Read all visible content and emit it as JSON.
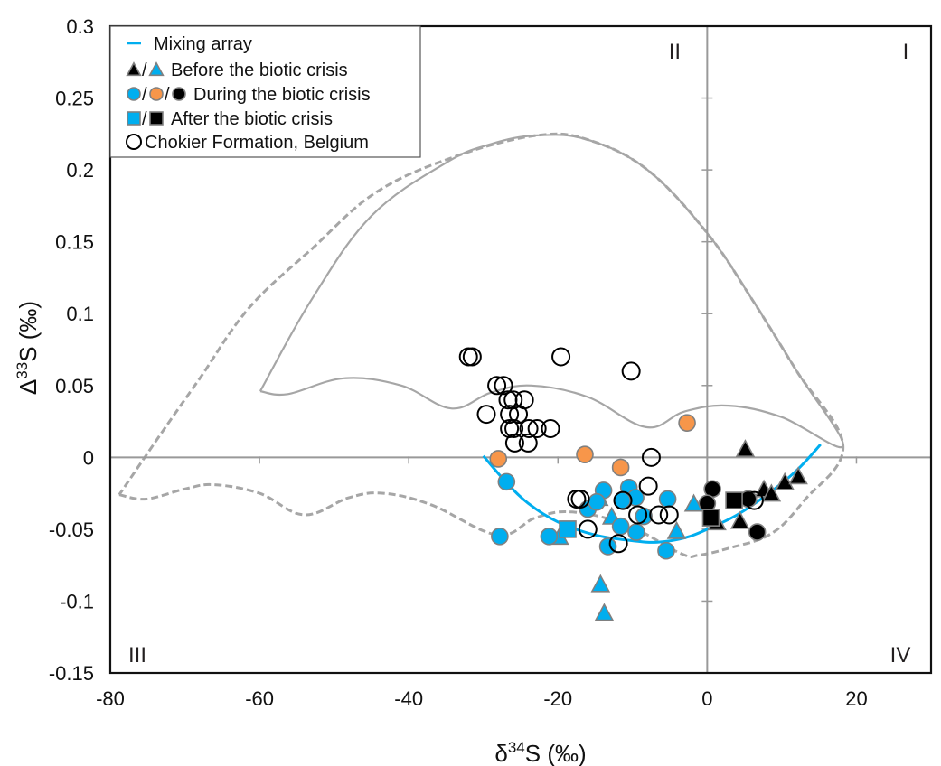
{
  "chart_data": {
    "type": "scatter",
    "title": "",
    "xlabel": "δ34S (‰)",
    "xlabel_parts": {
      "prefix": "δ",
      "sup": "34",
      "suffix": "S (‰)"
    },
    "ylabel": "Δ33S (‰)",
    "ylabel_parts": {
      "prefix": "Δ",
      "sup": "33",
      "suffix": "S (‰)"
    },
    "xlim": [
      -80,
      30
    ],
    "ylim": [
      -0.15,
      0.3
    ],
    "x_ticks": [
      -80,
      -60,
      -40,
      -20,
      0,
      20
    ],
    "x_tick_labels": [
      "-80",
      "-60",
      "-40",
      "-20",
      "0",
      "20"
    ],
    "y_ticks": [
      -0.15,
      -0.1,
      -0.05,
      0,
      0.05,
      0.1,
      0.15,
      0.2,
      0.25,
      0.3
    ],
    "y_tick_labels": [
      "-0.15",
      "-0.1",
      "-0.05",
      "0",
      "0.05",
      "0.1",
      "0.15",
      "0.2",
      "0.25",
      "0.3"
    ],
    "grid": false,
    "zero_axes": true,
    "legend_position": "top-left",
    "colors": {
      "blue": "#00AEEF",
      "orange": "#F7964A",
      "black": "#000000",
      "marker_edge": "#808080",
      "envelope": "#A6A6A6",
      "mixing": "#00AEEF"
    },
    "quadrant_labels": [
      {
        "text": "I",
        "position": "top-right"
      },
      {
        "text": "II",
        "position": "top-left-of-yaxis"
      },
      {
        "text": "III",
        "position": "bottom-left"
      },
      {
        "text": "IV",
        "position": "bottom-right"
      }
    ],
    "legend": [
      {
        "label": "Mixing array",
        "markers": [
          "line-blue"
        ]
      },
      {
        "label": "Before the biotic crisis",
        "markers": [
          "triangle-black",
          "triangle-blue"
        ]
      },
      {
        "label": "During the biotic crisis",
        "markers": [
          "circle-blue",
          "circle-orange",
          "circle-black"
        ]
      },
      {
        "label": "After the biotic crisis",
        "markers": [
          "square-blue",
          "square-black"
        ]
      },
      {
        "label": "Chokier Formation, Belgium",
        "markers": [
          "circle-open"
        ]
      }
    ],
    "envelopes": [
      {
        "name": "solid-envelope",
        "style": "solid",
        "points": [
          [
            -59.9,
            0.046
          ],
          [
            -56.2,
            0.044
          ],
          [
            -48.7,
            0.055
          ],
          [
            -41,
            0.05
          ],
          [
            -34.3,
            0.034
          ],
          [
            -29,
            0.045
          ],
          [
            -23.6,
            0.05
          ],
          [
            -16,
            0.042
          ],
          [
            -8.2,
            0.021
          ],
          [
            -3,
            0.032
          ],
          [
            2.9,
            0.036
          ],
          [
            10,
            0.028
          ],
          [
            18.2,
            0.008
          ],
          [
            12,
            0.06
          ],
          [
            6,
            0.11
          ],
          [
            0,
            0.156
          ],
          [
            -8,
            0.2
          ],
          [
            -16,
            0.221
          ],
          [
            -22.8,
            0.224
          ],
          [
            -29,
            0.218
          ],
          [
            -35,
            0.205
          ],
          [
            -45,
            0.168
          ],
          [
            -53,
            0.11
          ],
          [
            -59.9,
            0.046
          ]
        ]
      },
      {
        "name": "dashed-envelope",
        "style": "dashed",
        "points": [
          [
            -78.8,
            -0.026
          ],
          [
            -75.2,
            -0.029
          ],
          [
            -70,
            -0.022
          ],
          [
            -66.1,
            -0.019
          ],
          [
            -60,
            -0.025
          ],
          [
            -54,
            -0.04
          ],
          [
            -48,
            -0.028
          ],
          [
            -43.4,
            -0.025
          ],
          [
            -37,
            -0.033
          ],
          [
            -28.1,
            -0.054
          ],
          [
            -23,
            -0.042
          ],
          [
            -18.1,
            -0.038
          ],
          [
            -10.8,
            -0.047
          ],
          [
            -3.5,
            -0.067
          ],
          [
            -1.1,
            -0.068
          ],
          [
            3,
            -0.063
          ],
          [
            8.6,
            -0.053
          ],
          [
            13,
            -0.03
          ],
          [
            18.2,
            0.008
          ],
          [
            12,
            0.06
          ],
          [
            6,
            0.11
          ],
          [
            0,
            0.156
          ],
          [
            -8,
            0.2
          ],
          [
            -16,
            0.221
          ],
          [
            -22.8,
            0.224
          ],
          [
            -33.4,
            0.21
          ],
          [
            -44.2,
            0.185
          ],
          [
            -53,
            0.145
          ],
          [
            -61.4,
            0.104
          ],
          [
            -68,
            0.055
          ],
          [
            -73,
            0.018
          ],
          [
            -78.8,
            -0.026
          ]
        ]
      }
    ],
    "mixing_array": {
      "name": "Mixing array",
      "points": [
        [
          -30,
          0.001
        ],
        [
          -27,
          -0.017
        ],
        [
          -24,
          -0.032
        ],
        [
          -20,
          -0.045
        ],
        [
          -15,
          -0.054
        ],
        [
          -10,
          -0.058
        ],
        [
          -6.7,
          -0.059
        ],
        [
          -3,
          -0.056
        ],
        [
          0,
          -0.05
        ],
        [
          4,
          -0.04
        ],
        [
          8,
          -0.026
        ],
        [
          12,
          -0.009
        ],
        [
          15.2,
          0.009
        ]
      ]
    },
    "series": [
      {
        "name": "Before the biotic crisis (black)",
        "marker": "triangle",
        "color": "black",
        "points": [
          [
            5.1,
            0.005
          ],
          [
            1.3,
            -0.046
          ],
          [
            4.4,
            -0.045
          ],
          [
            7.6,
            -0.023
          ],
          [
            8.6,
            -0.026
          ],
          [
            10.4,
            -0.018
          ],
          [
            12.2,
            -0.014
          ]
        ]
      },
      {
        "name": "Before the biotic crisis (blue)",
        "marker": "triangle",
        "color": "blue",
        "points": [
          [
            -14.5,
            -0.029
          ],
          [
            -12.8,
            -0.042
          ],
          [
            -19.8,
            -0.056
          ],
          [
            -4.1,
            -0.052
          ],
          [
            -1.8,
            -0.033
          ],
          [
            -14.3,
            -0.089
          ],
          [
            -13.8,
            -0.109
          ]
        ]
      },
      {
        "name": "During the biotic crisis (blue)",
        "marker": "circle",
        "color": "blue",
        "points": [
          [
            -26.9,
            -0.017
          ],
          [
            -27.8,
            -0.055
          ],
          [
            -21.2,
            -0.055
          ],
          [
            -13.9,
            -0.023
          ],
          [
            -16.0,
            -0.036
          ],
          [
            -14.8,
            -0.031
          ],
          [
            -10.5,
            -0.021
          ],
          [
            -9.6,
            -0.028
          ],
          [
            -11.4,
            -0.03
          ],
          [
            -5.3,
            -0.029
          ],
          [
            -8.5,
            -0.041
          ],
          [
            -11.6,
            -0.048
          ],
          [
            -9.5,
            -0.052
          ],
          [
            -13.3,
            -0.062
          ],
          [
            -5.5,
            -0.065
          ]
        ]
      },
      {
        "name": "During the biotic crisis (orange)",
        "marker": "circle",
        "color": "orange",
        "points": [
          [
            -28.0,
            -0.001
          ],
          [
            -16.4,
            0.002
          ],
          [
            -11.6,
            -0.007
          ],
          [
            -2.7,
            0.024
          ]
        ]
      },
      {
        "name": "During the biotic crisis (black)",
        "marker": "circle",
        "color": "black",
        "points": [
          [
            0.7,
            -0.022
          ],
          [
            0.0,
            -0.032
          ],
          [
            5.5,
            -0.029
          ],
          [
            6.7,
            -0.052
          ]
        ]
      },
      {
        "name": "After the biotic crisis (blue)",
        "marker": "square",
        "color": "blue",
        "points": [
          [
            -18.7,
            -0.05
          ]
        ]
      },
      {
        "name": "After the biotic crisis (black)",
        "marker": "square",
        "color": "black",
        "points": [
          [
            0.5,
            -0.042
          ],
          [
            3.6,
            -0.03
          ]
        ]
      },
      {
        "name": "Chokier Formation, Belgium",
        "marker": "circle-open",
        "color": "none",
        "points": [
          [
            -32.0,
            0.07
          ],
          [
            -31.5,
            0.07
          ],
          [
            -19.6,
            0.07
          ],
          [
            -10.2,
            0.06
          ],
          [
            -28.2,
            0.05
          ],
          [
            -27.3,
            0.05
          ],
          [
            -26.7,
            0.04
          ],
          [
            -26.0,
            0.04
          ],
          [
            -24.5,
            0.04
          ],
          [
            -29.6,
            0.03
          ],
          [
            -26.5,
            0.03
          ],
          [
            -25.3,
            0.03
          ],
          [
            -26.5,
            0.02
          ],
          [
            -25.9,
            0.02
          ],
          [
            -23.9,
            0.02
          ],
          [
            -22.8,
            0.02
          ],
          [
            -21.0,
            0.02
          ],
          [
            -25.8,
            0.01
          ],
          [
            -24.0,
            0.01
          ],
          [
            -7.5,
            0.0
          ],
          [
            -17.5,
            -0.029
          ],
          [
            -17.0,
            -0.029
          ],
          [
            -11.3,
            -0.03
          ],
          [
            -7.9,
            -0.02
          ],
          [
            -9.3,
            -0.04
          ],
          [
            -6.5,
            -0.04
          ],
          [
            -5.1,
            -0.04
          ],
          [
            -16.0,
            -0.05
          ],
          [
            -11.9,
            -0.06
          ],
          [
            6.3,
            -0.03
          ]
        ]
      }
    ]
  }
}
